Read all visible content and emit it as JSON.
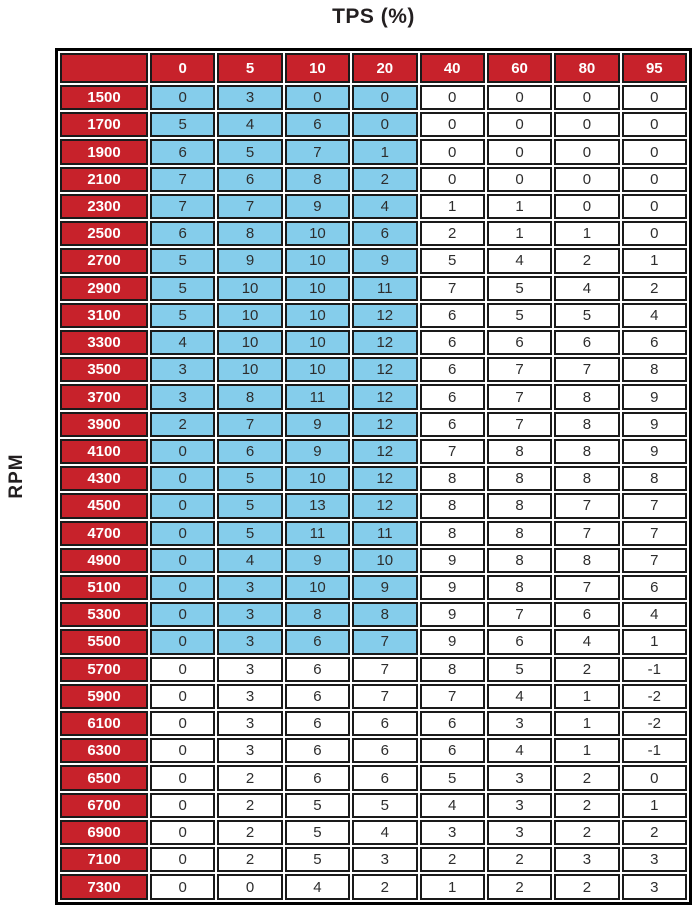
{
  "title": "TPS (%)",
  "y_axis_label": "RPM",
  "colors": {
    "header_bg": "#C7222B",
    "header_text": "#FFFFFF",
    "highlight_cell_bg": "#85CDEB",
    "cell_bg": "#FFFFFF",
    "cell_text": "#2D2D2D",
    "grid": "#1A1A1A",
    "outer_border": "#000000"
  },
  "chart_data": {
    "type": "table",
    "title": "TPS (%)",
    "row_axis_label": "RPM",
    "columns": [
      "0",
      "5",
      "10",
      "20",
      "40",
      "60",
      "80",
      "95"
    ],
    "rows": [
      {
        "rpm": "1500",
        "values": [
          0,
          3,
          0,
          0,
          0,
          0,
          0,
          0
        ]
      },
      {
        "rpm": "1700",
        "values": [
          5,
          4,
          6,
          0,
          0,
          0,
          0,
          0
        ]
      },
      {
        "rpm": "1900",
        "values": [
          6,
          5,
          7,
          1,
          0,
          0,
          0,
          0
        ]
      },
      {
        "rpm": "2100",
        "values": [
          7,
          6,
          8,
          2,
          0,
          0,
          0,
          0
        ]
      },
      {
        "rpm": "2300",
        "values": [
          7,
          7,
          9,
          4,
          1,
          1,
          0,
          0
        ]
      },
      {
        "rpm": "2500",
        "values": [
          6,
          8,
          10,
          6,
          2,
          1,
          1,
          0
        ]
      },
      {
        "rpm": "2700",
        "values": [
          5,
          9,
          10,
          9,
          5,
          4,
          2,
          1
        ]
      },
      {
        "rpm": "2900",
        "values": [
          5,
          10,
          10,
          11,
          7,
          5,
          4,
          2
        ]
      },
      {
        "rpm": "3100",
        "values": [
          5,
          10,
          10,
          12,
          6,
          5,
          5,
          4
        ]
      },
      {
        "rpm": "3300",
        "values": [
          4,
          10,
          10,
          12,
          6,
          6,
          6,
          6
        ]
      },
      {
        "rpm": "3500",
        "values": [
          3,
          10,
          10,
          12,
          6,
          7,
          7,
          8
        ]
      },
      {
        "rpm": "3700",
        "values": [
          3,
          8,
          11,
          12,
          6,
          7,
          8,
          9
        ]
      },
      {
        "rpm": "3900",
        "values": [
          2,
          7,
          9,
          12,
          6,
          7,
          8,
          9
        ]
      },
      {
        "rpm": "4100",
        "values": [
          0,
          6,
          9,
          12,
          7,
          8,
          8,
          9
        ]
      },
      {
        "rpm": "4300",
        "values": [
          0,
          5,
          10,
          12,
          8,
          8,
          8,
          8
        ]
      },
      {
        "rpm": "4500",
        "values": [
          0,
          5,
          13,
          12,
          8,
          8,
          7,
          7
        ]
      },
      {
        "rpm": "4700",
        "values": [
          0,
          5,
          11,
          11,
          8,
          8,
          7,
          7
        ]
      },
      {
        "rpm": "4900",
        "values": [
          0,
          4,
          9,
          10,
          9,
          8,
          8,
          7
        ]
      },
      {
        "rpm": "5100",
        "values": [
          0,
          3,
          10,
          9,
          9,
          8,
          7,
          6
        ]
      },
      {
        "rpm": "5300",
        "values": [
          0,
          3,
          8,
          8,
          9,
          7,
          6,
          4
        ]
      },
      {
        "rpm": "5500",
        "values": [
          0,
          3,
          6,
          7,
          9,
          6,
          4,
          1
        ]
      },
      {
        "rpm": "5700",
        "values": [
          0,
          3,
          6,
          7,
          8,
          5,
          2,
          -1
        ]
      },
      {
        "rpm": "5900",
        "values": [
          0,
          3,
          6,
          7,
          7,
          4,
          1,
          -2
        ]
      },
      {
        "rpm": "6100",
        "values": [
          0,
          3,
          6,
          6,
          6,
          3,
          1,
          -2
        ]
      },
      {
        "rpm": "6300",
        "values": [
          0,
          3,
          6,
          6,
          6,
          4,
          1,
          -1
        ]
      },
      {
        "rpm": "6500",
        "values": [
          0,
          2,
          6,
          6,
          5,
          3,
          2,
          0
        ]
      },
      {
        "rpm": "6700",
        "values": [
          0,
          2,
          5,
          5,
          4,
          3,
          2,
          1
        ]
      },
      {
        "rpm": "6900",
        "values": [
          0,
          2,
          5,
          4,
          3,
          3,
          2,
          2
        ]
      },
      {
        "rpm": "7100",
        "values": [
          0,
          2,
          5,
          3,
          2,
          2,
          3,
          3
        ]
      },
      {
        "rpm": "7300",
        "values": [
          0,
          0,
          4,
          2,
          1,
          2,
          2,
          3
        ]
      }
    ],
    "highlight": {
      "description": "light blue highlighted cell block",
      "rpm_from": "1500",
      "rpm_to": "5500",
      "column_from": "0",
      "column_to": "20",
      "color": "#85CDEB"
    }
  }
}
